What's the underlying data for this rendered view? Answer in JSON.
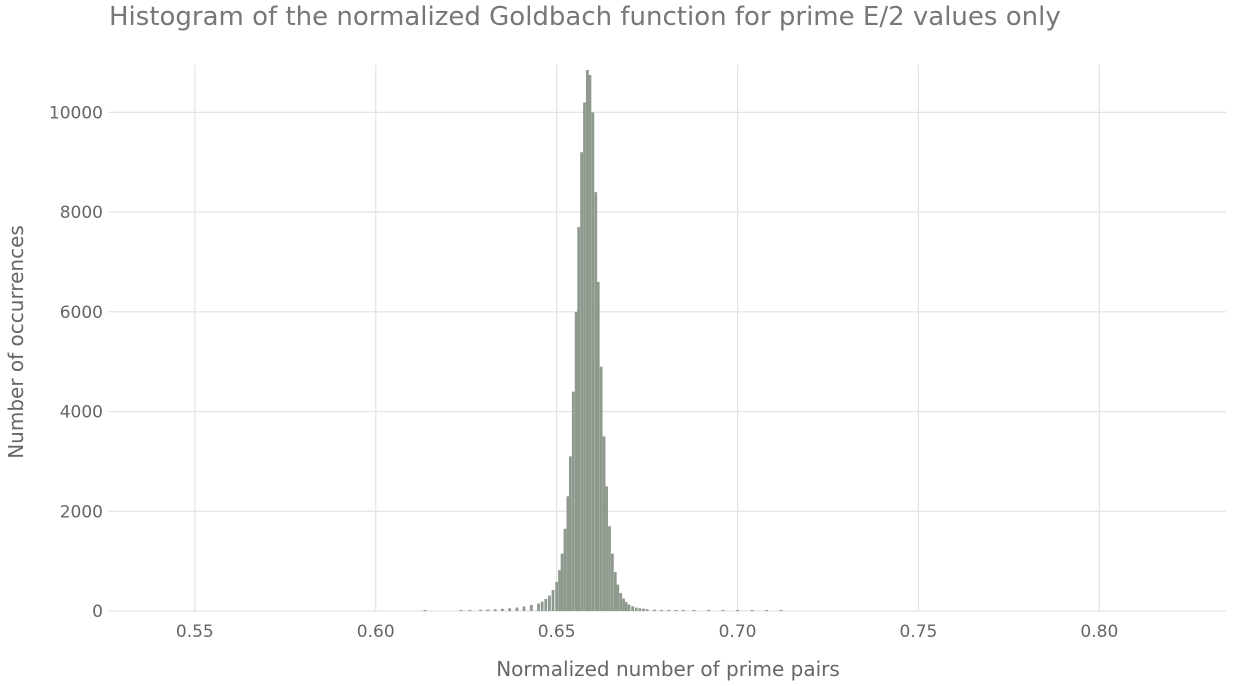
{
  "chart_data": {
    "type": "bar",
    "title": "Histogram of the normalized Goldbach function for prime E/2 values only",
    "xlabel": "Normalized number of prime pairs",
    "ylabel": "Number of occurrences",
    "xlim": [
      0.526,
      0.835
    ],
    "ylim": [
      0,
      10950
    ],
    "x_ticks": [
      0.55,
      0.6,
      0.65,
      0.7,
      0.75,
      0.8
    ],
    "x_tick_labels": [
      "0.55",
      "0.60",
      "0.65",
      "0.70",
      "0.75",
      "0.80"
    ],
    "y_ticks": [
      0,
      2000,
      4000,
      6000,
      8000,
      10000
    ],
    "y_tick_labels": [
      "0",
      "2000",
      "4000",
      "6000",
      "8000",
      "10000"
    ],
    "grid": true,
    "bar_color": "#8f9a8e",
    "bin_width": 0.00077,
    "x": [
      0.6136,
      0.6236,
      0.626,
      0.629,
      0.631,
      0.633,
      0.635,
      0.637,
      0.639,
      0.641,
      0.643,
      0.645,
      0.646,
      0.647,
      0.648,
      0.649,
      0.65,
      0.6508,
      0.6515,
      0.6523,
      0.6531,
      0.6538,
      0.6546,
      0.6554,
      0.6561,
      0.6569,
      0.6577,
      0.6585,
      0.6592,
      0.66,
      0.6608,
      0.6615,
      0.6623,
      0.6631,
      0.6638,
      0.6646,
      0.6654,
      0.6662,
      0.6669,
      0.6677,
      0.6685,
      0.6692,
      0.67,
      0.671,
      0.672,
      0.673,
      0.674,
      0.675,
      0.677,
      0.679,
      0.681,
      0.683,
      0.685,
      0.688,
      0.692,
      0.696,
      0.7,
      0.704,
      0.708,
      0.712
    ],
    "values": [
      20,
      20,
      20,
      25,
      30,
      35,
      45,
      55,
      70,
      90,
      120,
      150,
      190,
      240,
      310,
      420,
      580,
      820,
      1150,
      1650,
      2300,
      3100,
      4400,
      6000,
      7700,
      9200,
      10200,
      10850,
      10750,
      10000,
      8400,
      6600,
      4900,
      3500,
      2500,
      1700,
      1150,
      780,
      530,
      360,
      250,
      180,
      130,
      95,
      70,
      55,
      45,
      35,
      28,
      22,
      18,
      15,
      12,
      10,
      8,
      7,
      6,
      5,
      4,
      3
    ]
  }
}
